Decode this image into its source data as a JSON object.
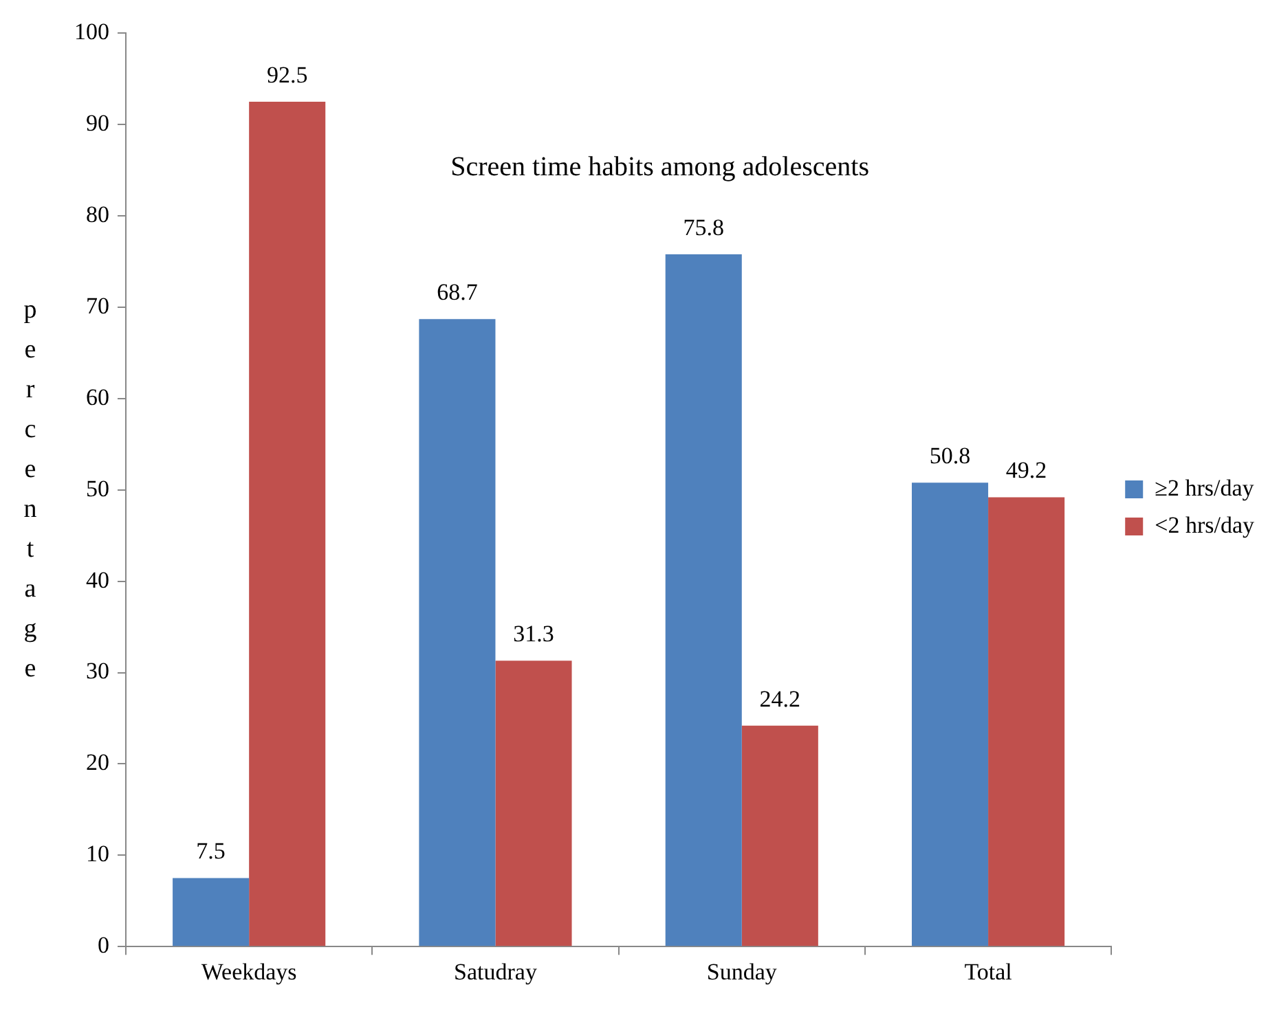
{
  "chart_data": {
    "type": "bar",
    "title": "Screen time habits among adolescents",
    "ylabel": "percentage",
    "categories": [
      "Weekdays",
      "Satudray",
      "Sunday",
      "Total"
    ],
    "series": [
      {
        "name": "≥2 hrs/day",
        "color": "#4f81bd",
        "values": [
          7.5,
          68.7,
          75.8,
          50.8
        ]
      },
      {
        "name": "<2 hrs/day",
        "color": "#c0504d",
        "values": [
          92.5,
          31.3,
          24.2,
          49.2
        ]
      }
    ],
    "ylim": [
      0,
      100
    ],
    "yticks": [
      0,
      10,
      20,
      30,
      40,
      50,
      60,
      70,
      80,
      90,
      100
    ],
    "grid": false,
    "legend": "right",
    "data_labels": true
  }
}
